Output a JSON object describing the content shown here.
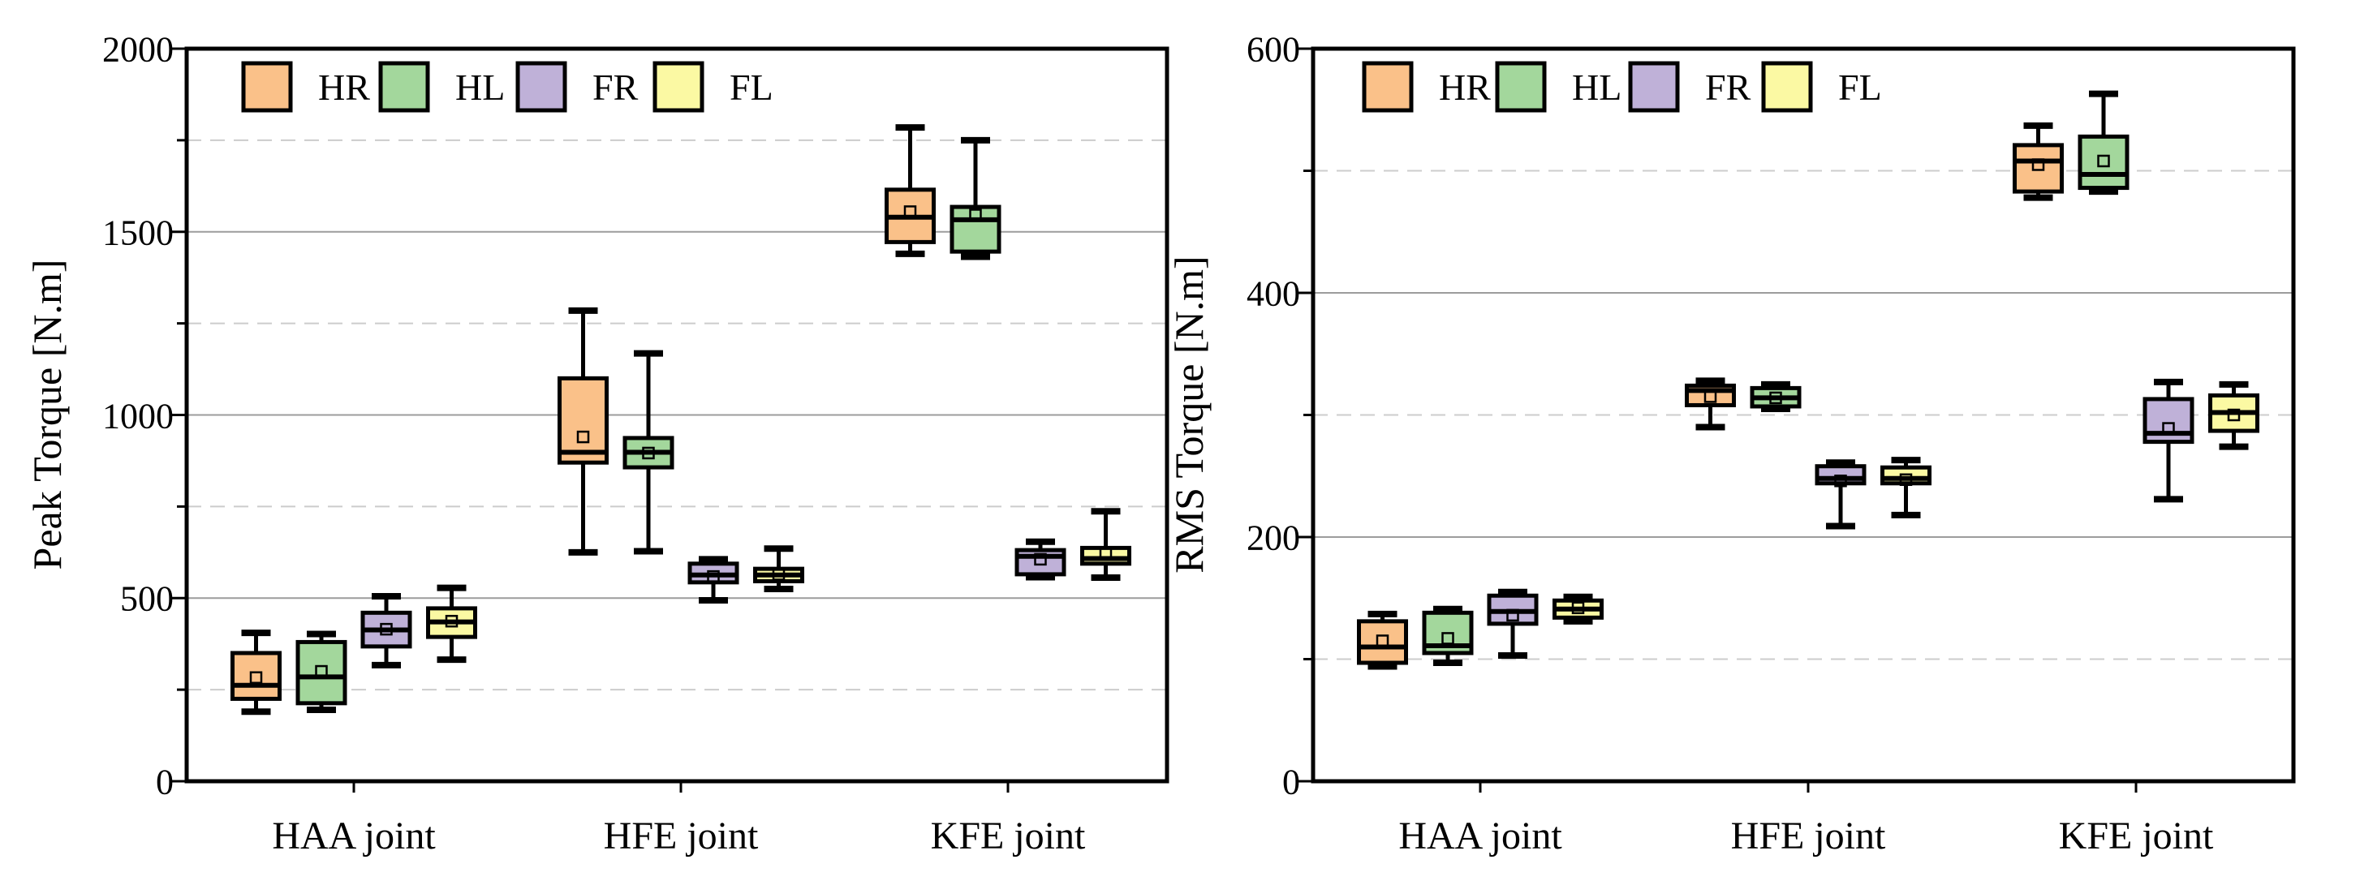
{
  "figure": {
    "background": "#ffffff"
  },
  "legend": {
    "labels": [
      "HR",
      "HL",
      "FR",
      "FL"
    ],
    "colors": {
      "HR": "#FAC189",
      "HL": "#A3D79C",
      "FR": "#BFB1D8",
      "FL": "#FBF9A3"
    }
  },
  "style": {
    "box_edge_color": "#000000",
    "major_grid_color": "#9c9c9c",
    "minor_grid_color": "#cccccc"
  },
  "chart_data": [
    {
      "type": "box",
      "title": "",
      "ylabel": "Peak Torque [N.m]",
      "xlabel": "",
      "categories": [
        "HAA joint",
        "HFE joint",
        "KFE joint"
      ],
      "ylim": [
        0,
        2000
      ],
      "yticks": [
        0,
        500,
        1000,
        1500,
        2000
      ],
      "ytick_labels": [
        "0",
        "500",
        "1000",
        "1500",
        "2000"
      ],
      "yminor_step": 250,
      "grid": {
        "major": "solid",
        "minor": "dashed"
      },
      "legend_position": "top-left-inside",
      "series": [
        {
          "name": "HR",
          "color": "#FAC189",
          "boxes": [
            {
              "whislo": 190,
              "q1": 225,
              "med": 262,
              "mean": 283,
              "q3": 350,
              "whishi": 405
            },
            {
              "whislo": 625,
              "q1": 870,
              "med": 898,
              "mean": 940,
              "q3": 1100,
              "whishi": 1285
            },
            {
              "whislo": 1440,
              "q1": 1472,
              "med": 1540,
              "mean": 1555,
              "q3": 1615,
              "whishi": 1785
            }
          ]
        },
        {
          "name": "HL",
          "color": "#A3D79C",
          "boxes": [
            {
              "whislo": 195,
              "q1": 213,
              "med": 285,
              "mean": 300,
              "q3": 380,
              "whishi": 402
            },
            {
              "whislo": 628,
              "q1": 857,
              "med": 898,
              "mean": 896,
              "q3": 937,
              "whishi": 1168
            },
            {
              "whislo": 1432,
              "q1": 1446,
              "med": 1533,
              "mean": 1546,
              "q3": 1568,
              "whishi": 1750
            }
          ]
        },
        {
          "name": "FR",
          "color": "#BFB1D8",
          "boxes": [
            {
              "whislo": 317,
              "q1": 368,
              "med": 413,
              "mean": 415,
              "q3": 460,
              "whishi": 505
            },
            {
              "whislo": 494,
              "q1": 543,
              "med": 563,
              "mean": 559,
              "q3": 594,
              "whishi": 606
            },
            {
              "whislo": 557,
              "q1": 565,
              "med": 614,
              "mean": 606,
              "q3": 631,
              "whishi": 654
            }
          ]
        },
        {
          "name": "FL",
          "color": "#FBF9A3",
          "boxes": [
            {
              "whislo": 332,
              "q1": 394,
              "med": 435,
              "mean": 437,
              "q3": 472,
              "whishi": 528
            },
            {
              "whislo": 525,
              "q1": 546,
              "med": 563,
              "mean": 565,
              "q3": 580,
              "whishi": 635
            },
            {
              "whislo": 556,
              "q1": 594,
              "med": 608,
              "mean": 623,
              "q3": 637,
              "whishi": 737
            }
          ]
        }
      ]
    },
    {
      "type": "box",
      "title": "",
      "ylabel": "RMS Torque [N.m]",
      "xlabel": "",
      "categories": [
        "HAA joint",
        "HFE joint",
        "KFE joint"
      ],
      "ylim": [
        0,
        600
      ],
      "yticks": [
        0,
        200,
        400,
        600
      ],
      "ytick_labels": [
        "0",
        "200",
        "400",
        "600"
      ],
      "yminor_step": 100,
      "grid": {
        "major": "solid",
        "minor": "dashed"
      },
      "legend_position": "top-left-inside",
      "series": [
        {
          "name": "HR",
          "color": "#FAC189",
          "boxes": [
            {
              "whislo": 94,
              "q1": 97,
              "med": 110,
              "mean": 115,
              "q3": 131,
              "whishi": 137
            },
            {
              "whislo": 290,
              "q1": 308,
              "med": 320,
              "mean": 315,
              "q3": 324,
              "whishi": 328
            },
            {
              "whislo": 478,
              "q1": 483,
              "med": 508,
              "mean": 505,
              "q3": 521,
              "whishi": 537
            }
          ]
        },
        {
          "name": "HL",
          "color": "#A3D79C",
          "boxes": [
            {
              "whislo": 97,
              "q1": 105,
              "med": 111,
              "mean": 117,
              "q3": 138,
              "whishi": 141
            },
            {
              "whislo": 305,
              "q1": 307,
              "med": 314,
              "mean": 314,
              "q3": 322,
              "whishi": 325
            },
            {
              "whislo": 483,
              "q1": 486,
              "med": 497,
              "mean": 508,
              "q3": 528,
              "whishi": 563
            }
          ]
        },
        {
          "name": "FR",
          "color": "#BFB1D8",
          "boxes": [
            {
              "whislo": 103,
              "q1": 129,
              "med": 139,
              "mean": 136,
              "q3": 152,
              "whishi": 155
            },
            {
              "whislo": 209,
              "q1": 244,
              "med": 248,
              "mean": 246,
              "q3": 258,
              "whishi": 261
            },
            {
              "whislo": 231,
              "q1": 278,
              "med": 285,
              "mean": 289,
              "q3": 313,
              "whishi": 327
            }
          ]
        },
        {
          "name": "FL",
          "color": "#FBF9A3",
          "boxes": [
            {
              "whislo": 131,
              "q1": 134,
              "med": 141,
              "mean": 142,
              "q3": 148,
              "whishi": 151
            },
            {
              "whislo": 218,
              "q1": 244,
              "med": 248,
              "mean": 247,
              "q3": 257,
              "whishi": 263
            },
            {
              "whislo": 274,
              "q1": 287,
              "med": 302,
              "mean": 300,
              "q3": 316,
              "whishi": 325
            }
          ]
        }
      ]
    }
  ]
}
